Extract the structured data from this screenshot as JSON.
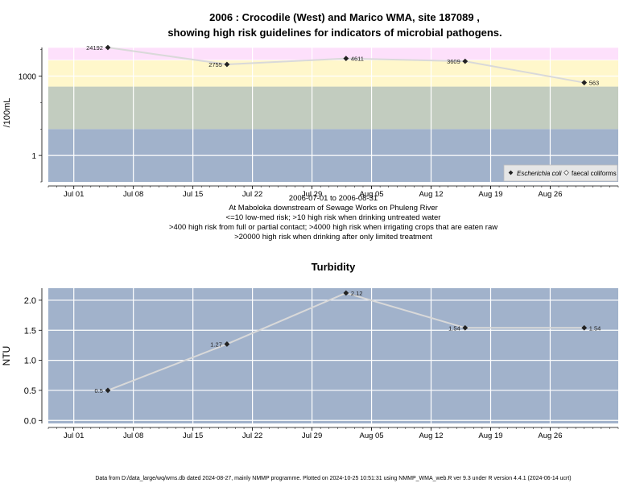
{
  "colors": {
    "band_red": "#ffc0cb",
    "band_pink": "#fde0fb",
    "band_yellow": "#fff7cb",
    "band_green": "#c2ccbf",
    "band_blue": "#a1b2cb",
    "grid": "#ffffff",
    "line": "#d9d9d9",
    "point": "#222222"
  },
  "chart_data": [
    {
      "type": "line",
      "title": "2006 : Crocodile (West) and Marico WMA, site 187089 ,",
      "subtitle": "showing high risk guidelines for indicators of microbial pathogens.",
      "ylabel": "/100mL",
      "y_scale": "log10",
      "ylim": [
        0.1,
        12000
      ],
      "yticks": [
        1,
        1000
      ],
      "ytick_labels": [
        "1",
        "1000"
      ],
      "x_is_date": true,
      "xlim": [
        "2006-06-28",
        "2006-09-03"
      ],
      "xticks": [
        "2006-07-01",
        "2006-07-08",
        "2006-07-15",
        "2006-07-22",
        "2006-07-29",
        "2006-08-05",
        "2006-08-12",
        "2006-08-19",
        "2006-08-26"
      ],
      "xtick_labels": [
        "Jul 01",
        "Jul 08",
        "Jul 15",
        "Jul 22",
        "Jul 29",
        "Aug 05",
        "Aug 12",
        "Aug 19",
        "Aug 26"
      ],
      "grid": true,
      "risk_bands": [
        {
          "from": 0.1,
          "to": 10,
          "color": "band_blue"
        },
        {
          "from": 10,
          "to": 400,
          "color": "band_green"
        },
        {
          "from": 400,
          "to": 4000,
          "color": "band_yellow"
        },
        {
          "from": 4000,
          "to": 20000,
          "color": "band_pink"
        },
        {
          "from": 20000,
          "to": 30000,
          "color": "band_red"
        }
      ],
      "series": [
        {
          "name": "Escherichia coli",
          "x": [
            "2006-07-05",
            "2006-07-19",
            "2006-08-02",
            "2006-08-16",
            "2006-08-30"
          ],
          "values": [
            24192,
            2755,
            4611,
            3609,
            563
          ],
          "labels": [
            "24192",
            "2755",
            "4611",
            "3609",
            "563"
          ]
        }
      ],
      "legend": {
        "placement": "bottom-right",
        "entries": [
          "Escherichia coli",
          "faecal coliforms"
        ]
      },
      "caption_lines": [
        "2006-07-01 to 2006-08-31",
        "At Maboloka downstream of Sewage Works on Phuleng River",
        "<=10 low-med risk; >10 high risk when drinking untreated water",
        ">400 high risk from full or partial contact; >4000 high risk when irrigating crops that are eaten raw",
        ">20000 high risk when drinking after only limited treatment"
      ]
    },
    {
      "type": "line",
      "title": "Turbidity",
      "ylabel": "NTU",
      "ylim": [
        -0.05,
        2.2
      ],
      "yticks": [
        0,
        0.5,
        1,
        1.5,
        2
      ],
      "ytick_labels": [
        "0.0",
        "0.5",
        "1.0",
        "1.5",
        "2.0"
      ],
      "x_is_date": true,
      "xlim": [
        "2006-06-28",
        "2006-09-03"
      ],
      "xticks": [
        "2006-07-01",
        "2006-07-08",
        "2006-07-15",
        "2006-07-22",
        "2006-07-29",
        "2006-08-05",
        "2006-08-12",
        "2006-08-19",
        "2006-08-26"
      ],
      "xtick_labels": [
        "Jul 01",
        "Jul 08",
        "Jul 15",
        "Jul 22",
        "Jul 29",
        "Aug 05",
        "Aug 12",
        "Aug 19",
        "Aug 26"
      ],
      "grid": true,
      "series": [
        {
          "x": [
            "2006-07-05",
            "2006-07-19",
            "2006-08-02",
            "2006-08-16",
            "2006-08-30"
          ],
          "values": [
            0.5,
            1.27,
            2.12,
            1.54,
            1.54
          ],
          "labels": [
            "0.5",
            "1.27",
            "2.12",
            "1.54",
            "1.54"
          ]
        }
      ]
    }
  ],
  "footer": "Data from D:/data_large/wq/wms.db dated 2024-08-27, mainly NMMP programme. Plotted on 2024-10-25 10:51:31 using NMMP_WMA_web.R ver 9.3 under R version 4.4.1 (2024-06-14 ucrt)"
}
